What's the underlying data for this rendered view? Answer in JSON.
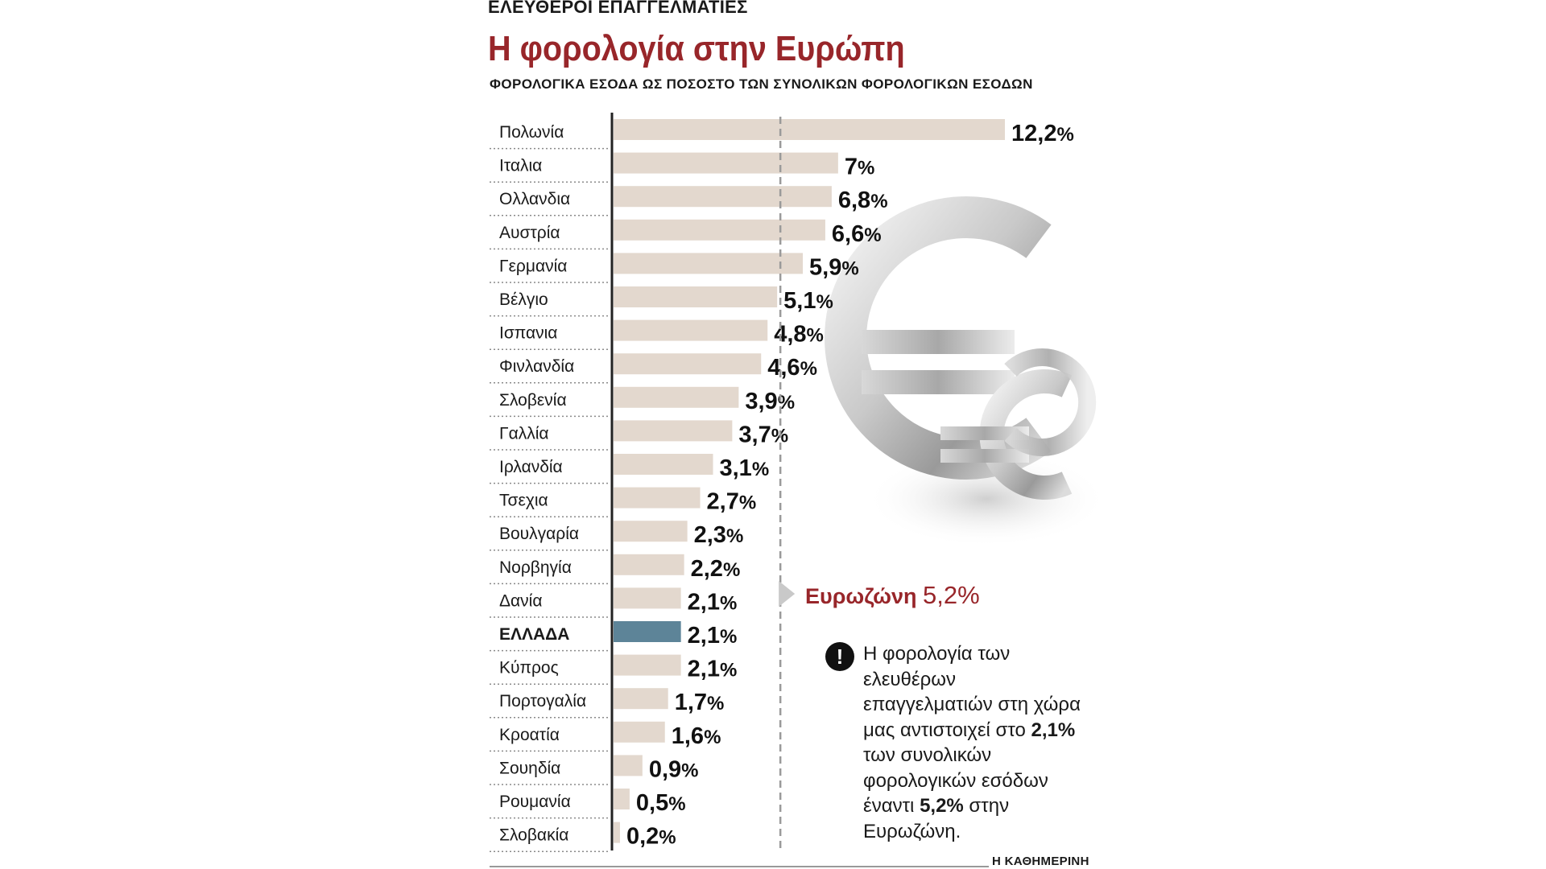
{
  "header": {
    "kicker": "ΕΛΕΥΘΕΡΟΙ ΕΠΑΓΓΕΛΜΑΤΙΕΣ",
    "title": "Η φορολογία στην Ευρώπη",
    "subtitle": "ΦΟΡΟΛΟΓΙΚΑ ΕΣΟΔΑ ΩΣ ΠΟΣΟΣΤΟ ΤΩΝ ΣΥΝΟΛΙΚΩΝ ΦΟΡΟΛΟΓΙΚΩΝ ΕΣΟΔΩΝ"
  },
  "colors": {
    "bar": "#e3d8ce",
    "highlight_bar": "#5d8498",
    "accent": "#98262a"
  },
  "chart_data": {
    "type": "bar",
    "orientation": "horizontal",
    "title": "Η φορολογία στην Ευρώπη",
    "subtitle": "ΦΟΡΟΛΟΓΙΚΑ ΕΣΟΔΑ ΩΣ ΠΟΣΟΣΤΟ ΤΩΝ ΣΥΝΟΛΙΚΩΝ ΦΟΡΟΛΟΓΙΚΩΝ ΕΣΟΔΩΝ",
    "unit": "%",
    "categories": [
      "Πολωνία",
      "Ιταλια",
      "Ολλανδια",
      "Αυστρία",
      "Γερμανία",
      "Βέλγιο",
      "Ισπανια",
      "Φινλανδία",
      "Σλοβενία",
      "Γαλλία",
      "Ιρλανδία",
      "Τσεχια",
      "Βουλγαρία",
      "Νορβηγία",
      "Δανία",
      "ΕΛΛΑΔΑ",
      "Κύπρος",
      "Πορτογαλία",
      "Κροατία",
      "Σουηδία",
      "Ρουμανία",
      "Σλοβακία"
    ],
    "values": [
      12.2,
      7,
      6.8,
      6.6,
      5.9,
      5.1,
      4.8,
      4.6,
      3.9,
      3.7,
      3.1,
      2.7,
      2.3,
      2.2,
      2.1,
      2.1,
      2.1,
      1.7,
      1.6,
      0.9,
      0.5,
      0.2
    ],
    "value_labels": [
      "12,2",
      "7",
      "6,8",
      "6,6",
      "5,9",
      "5,1",
      "4,8",
      "4,6",
      "3,9",
      "3,7",
      "3,1",
      "2,7",
      "2,3",
      "2,2",
      "2,1",
      "2,1",
      "2,1",
      "1,7",
      "1,6",
      "0,9",
      "0,5",
      "0,2"
    ],
    "highlight": "ΕΛΛΑΔΑ",
    "reference_line": {
      "label": "Ευρωζώνη",
      "value": 5.2,
      "value_label": "5,2"
    },
    "xlim": [
      0,
      12.2
    ]
  },
  "note": {
    "text_1": "Η φορολογία των ελευθέρων επαγγελματιών στη χώρα μας αντιστοιχεί στο ",
    "bold_1": "2,1%",
    "text_2": " των συνολικών φορολογικών εσόδων έναντι ",
    "bold_2": "5,2%",
    "text_3": " στην Ευρωζώνη."
  },
  "source": "Η ΚΑΘΗΜΕΡΙΝΗ"
}
